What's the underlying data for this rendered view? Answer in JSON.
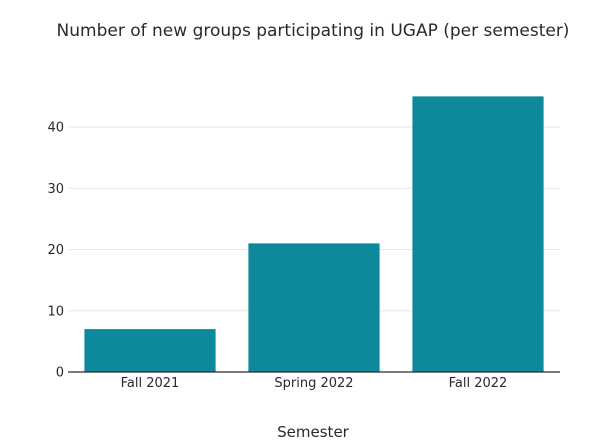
{
  "colors": {
    "bar": "#0e889b",
    "grid": "#e6e6e6",
    "axis": "#2a2a2a"
  },
  "chart_data": {
    "type": "bar",
    "title": "Number of new groups participating in UGAP (per semester)",
    "xlabel": "Semester",
    "ylabel": "",
    "categories": [
      "Fall 2021",
      "Spring 2022",
      "Fall 2022"
    ],
    "values": [
      7,
      21,
      45
    ],
    "ylim": [
      0,
      48
    ],
    "yticks": [
      0,
      10,
      20,
      30,
      40
    ],
    "grid": true,
    "legend": "none"
  }
}
